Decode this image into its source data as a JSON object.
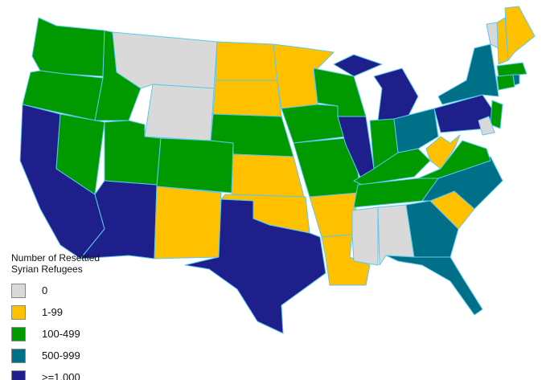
{
  "legend": {
    "title": "Number of Resettled Syrian Refugees",
    "items": [
      {
        "label": "0",
        "color": "#d9d9d9"
      },
      {
        "label": "1-99",
        "color": "#ffc000"
      },
      {
        "label": "100-499",
        "color": "#009a00"
      },
      {
        "label": "500-999",
        "color": "#006f88"
      },
      {
        "label": ">=1,000",
        "color": "#1f1f8c"
      }
    ]
  }
}
